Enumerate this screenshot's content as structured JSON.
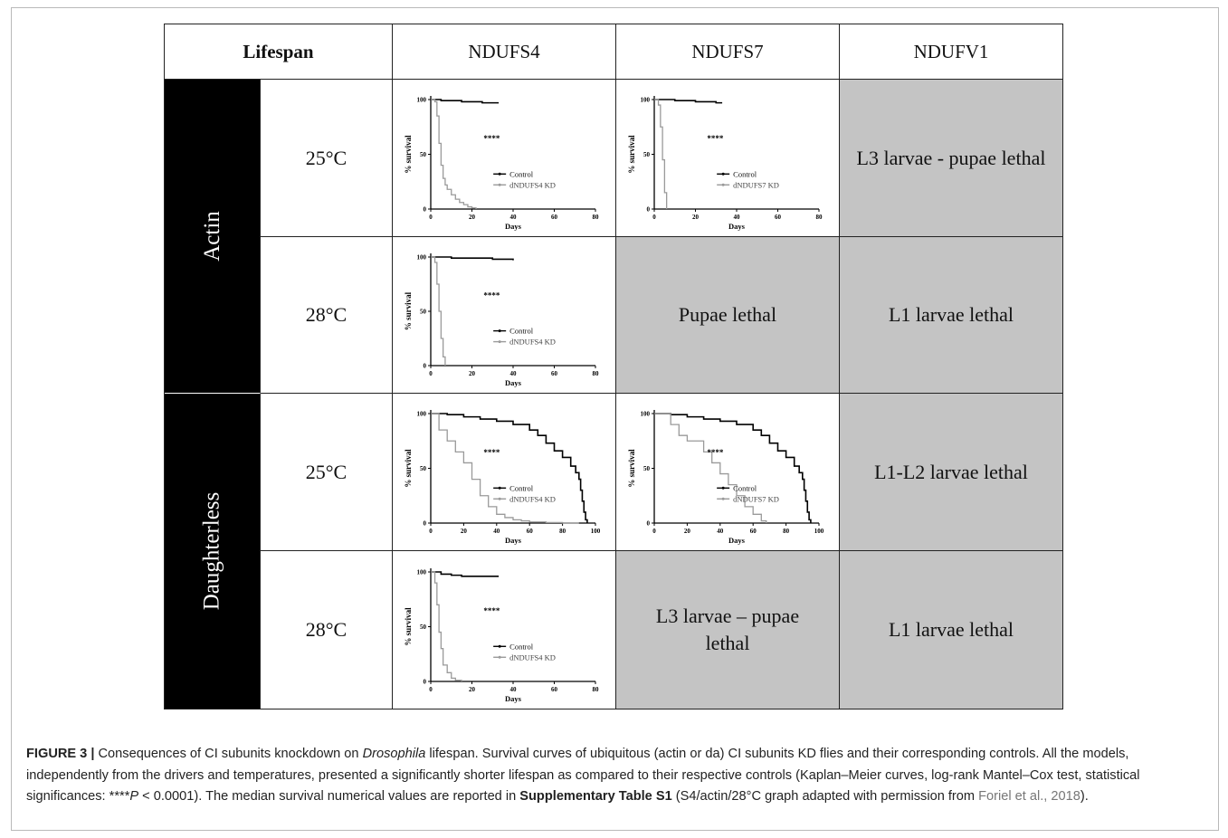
{
  "table": {
    "header": {
      "lifespan": "Lifespan",
      "col1": "NDUFS4",
      "col2": "NDUFS7",
      "col3": "NDUFV1"
    },
    "drivers": [
      "Actin",
      "Daughterless"
    ],
    "rows": [
      {
        "temp": "25°C",
        "ndufv1": "L3 larvae - pupae lethal"
      },
      {
        "temp": "28°C",
        "ndufs7": "Pupae lethal",
        "ndufv1": "L1 larvae lethal"
      },
      {
        "temp": "25°C",
        "ndufv1": "L1-L2 larvae lethal"
      },
      {
        "temp": "28°C",
        "ndufs7": "L3 larvae – pupae lethal",
        "ndufv1": "L1 larvae lethal"
      }
    ]
  },
  "caption": {
    "label": "FIGURE 3 |",
    "t1": " Consequences of CI subunits knockdown on ",
    "i1": "Drosophila",
    "t2": " lifespan. Survival curves of ubiquitous (actin or da) CI subunits KD flies and their corresponding controls. All the models, independently from the drivers and temperatures, presented a significantly shorter lifespan as compared to their respective controls (Kaplan–Meier curves, log-rank Mantel–Cox test, statistical significances: ****",
    "i2": "P",
    "t3": " < 0.0001). The median survival numerical values are reported in ",
    "b1": "Supplementary Table S1",
    "t4": " (S4/actin/28°C graph adapted with permission from ",
    "link": "Foriel et al., 2018",
    "t5": ")."
  },
  "chart_data": [
    {
      "type": "line",
      "id": "actin-25-ndufs4",
      "xlabel": "Days",
      "ylabel": "% survival",
      "xlim": [
        0,
        80
      ],
      "ylim": [
        0,
        100
      ],
      "xticks": [
        0,
        20,
        40,
        60,
        80
      ],
      "yticks": [
        0,
        50,
        100
      ],
      "annotation": "****",
      "series": [
        {
          "name": "Control",
          "color": "#000000",
          "x": [
            0,
            5,
            10,
            15,
            20,
            25,
            30,
            33
          ],
          "y": [
            100,
            99,
            99,
            98,
            98,
            97,
            97,
            97
          ]
        },
        {
          "name": "dNDUFS4 KD",
          "color": "#9a9a9a",
          "x": [
            0,
            2,
            3,
            4,
            5,
            6,
            7,
            8,
            10,
            12,
            14,
            16,
            18,
            20,
            22
          ],
          "y": [
            100,
            98,
            85,
            60,
            40,
            28,
            22,
            18,
            13,
            9,
            6,
            4,
            2,
            1,
            0
          ]
        }
      ]
    },
    {
      "type": "line",
      "id": "actin-25-ndufs7",
      "xlabel": "Days",
      "ylabel": "% survival",
      "xlim": [
        0,
        80
      ],
      "ylim": [
        0,
        100
      ],
      "xticks": [
        0,
        20,
        40,
        60,
        80
      ],
      "yticks": [
        0,
        50,
        100
      ],
      "annotation": "****",
      "series": [
        {
          "name": "Control",
          "color": "#000000",
          "x": [
            0,
            5,
            10,
            15,
            20,
            25,
            30,
            33
          ],
          "y": [
            100,
            100,
            99,
            99,
            98,
            98,
            97,
            97
          ]
        },
        {
          "name": "dNDUFS7 KD",
          "color": "#9a9a9a",
          "x": [
            0,
            1,
            2,
            3,
            4,
            5,
            6
          ],
          "y": [
            100,
            100,
            95,
            75,
            45,
            15,
            0
          ]
        }
      ]
    },
    {
      "type": "line",
      "id": "actin-28-ndufs4",
      "xlabel": "Days",
      "ylabel": "% survival",
      "xlim": [
        0,
        80
      ],
      "ylim": [
        0,
        100
      ],
      "xticks": [
        0,
        20,
        40,
        60,
        80
      ],
      "yticks": [
        0,
        50,
        100
      ],
      "annotation": "****",
      "series": [
        {
          "name": "Control",
          "color": "#000000",
          "x": [
            0,
            5,
            10,
            20,
            30,
            40
          ],
          "y": [
            100,
            100,
            99,
            99,
            98,
            97
          ]
        },
        {
          "name": "dNDUFS4 KD",
          "color": "#9a9a9a",
          "x": [
            0,
            2,
            3,
            4,
            5,
            6,
            7
          ],
          "y": [
            100,
            95,
            75,
            50,
            25,
            8,
            0
          ]
        }
      ]
    },
    {
      "type": "line",
      "id": "da-25-ndufs4",
      "xlabel": "Days",
      "ylabel": "% survival",
      "xlim": [
        0,
        100
      ],
      "ylim": [
        0,
        100
      ],
      "xticks": [
        0,
        20,
        40,
        60,
        80,
        100
      ],
      "yticks": [
        0,
        50,
        100
      ],
      "annotation": "****",
      "series": [
        {
          "name": "Control",
          "color": "#000000",
          "x": [
            0,
            10,
            20,
            30,
            40,
            50,
            60,
            65,
            70,
            75,
            80,
            85,
            88,
            90,
            91,
            92,
            93,
            94,
            95
          ],
          "y": [
            100,
            99,
            97,
            95,
            93,
            90,
            85,
            80,
            73,
            66,
            60,
            52,
            46,
            40,
            30,
            20,
            10,
            3,
            0
          ]
        },
        {
          "name": "dNDUFS4 KD",
          "color": "#9a9a9a",
          "x": [
            0,
            5,
            10,
            15,
            20,
            25,
            30,
            35,
            40,
            45,
            50,
            55,
            60,
            70,
            80,
            90
          ],
          "y": [
            100,
            85,
            75,
            65,
            55,
            40,
            25,
            15,
            8,
            5,
            3,
            2,
            1,
            0.5,
            0,
            0
          ]
        }
      ]
    },
    {
      "type": "line",
      "id": "da-25-ndufs7",
      "xlabel": "Days",
      "ylabel": "% survival",
      "xlim": [
        0,
        100
      ],
      "ylim": [
        0,
        100
      ],
      "xticks": [
        0,
        20,
        40,
        60,
        80,
        100
      ],
      "yticks": [
        0,
        50,
        100
      ],
      "annotation": "****",
      "series": [
        {
          "name": "Control",
          "color": "#000000",
          "x": [
            0,
            10,
            20,
            30,
            40,
            50,
            60,
            65,
            70,
            75,
            80,
            85,
            88,
            90,
            91,
            92,
            93,
            94,
            95
          ],
          "y": [
            100,
            99,
            97,
            95,
            93,
            90,
            85,
            80,
            73,
            66,
            60,
            52,
            46,
            40,
            30,
            20,
            10,
            3,
            0
          ]
        },
        {
          "name": "dNDUFS7 KD",
          "color": "#9a9a9a",
          "x": [
            0,
            10,
            15,
            20,
            30,
            35,
            40,
            45,
            50,
            55,
            60,
            65,
            68
          ],
          "y": [
            100,
            90,
            80,
            75,
            65,
            55,
            45,
            35,
            25,
            15,
            8,
            2,
            0
          ]
        }
      ]
    },
    {
      "type": "line",
      "id": "da-28-ndufs4",
      "xlabel": "Days",
      "ylabel": "% survival",
      "xlim": [
        0,
        80
      ],
      "ylim": [
        0,
        100
      ],
      "xticks": [
        0,
        20,
        40,
        60,
        80
      ],
      "yticks": [
        0,
        50,
        100
      ],
      "annotation": "****",
      "series": [
        {
          "name": "Control",
          "color": "#000000",
          "x": [
            0,
            5,
            10,
            15,
            20,
            25,
            30,
            33
          ],
          "y": [
            100,
            98,
            97,
            96,
            96,
            96,
            96,
            96
          ]
        },
        {
          "name": "dNDUFS4 KD",
          "color": "#9a9a9a",
          "x": [
            0,
            2,
            3,
            4,
            5,
            6,
            8,
            10,
            12,
            15
          ],
          "y": [
            100,
            90,
            70,
            45,
            30,
            15,
            8,
            3,
            1,
            0
          ]
        }
      ]
    }
  ]
}
